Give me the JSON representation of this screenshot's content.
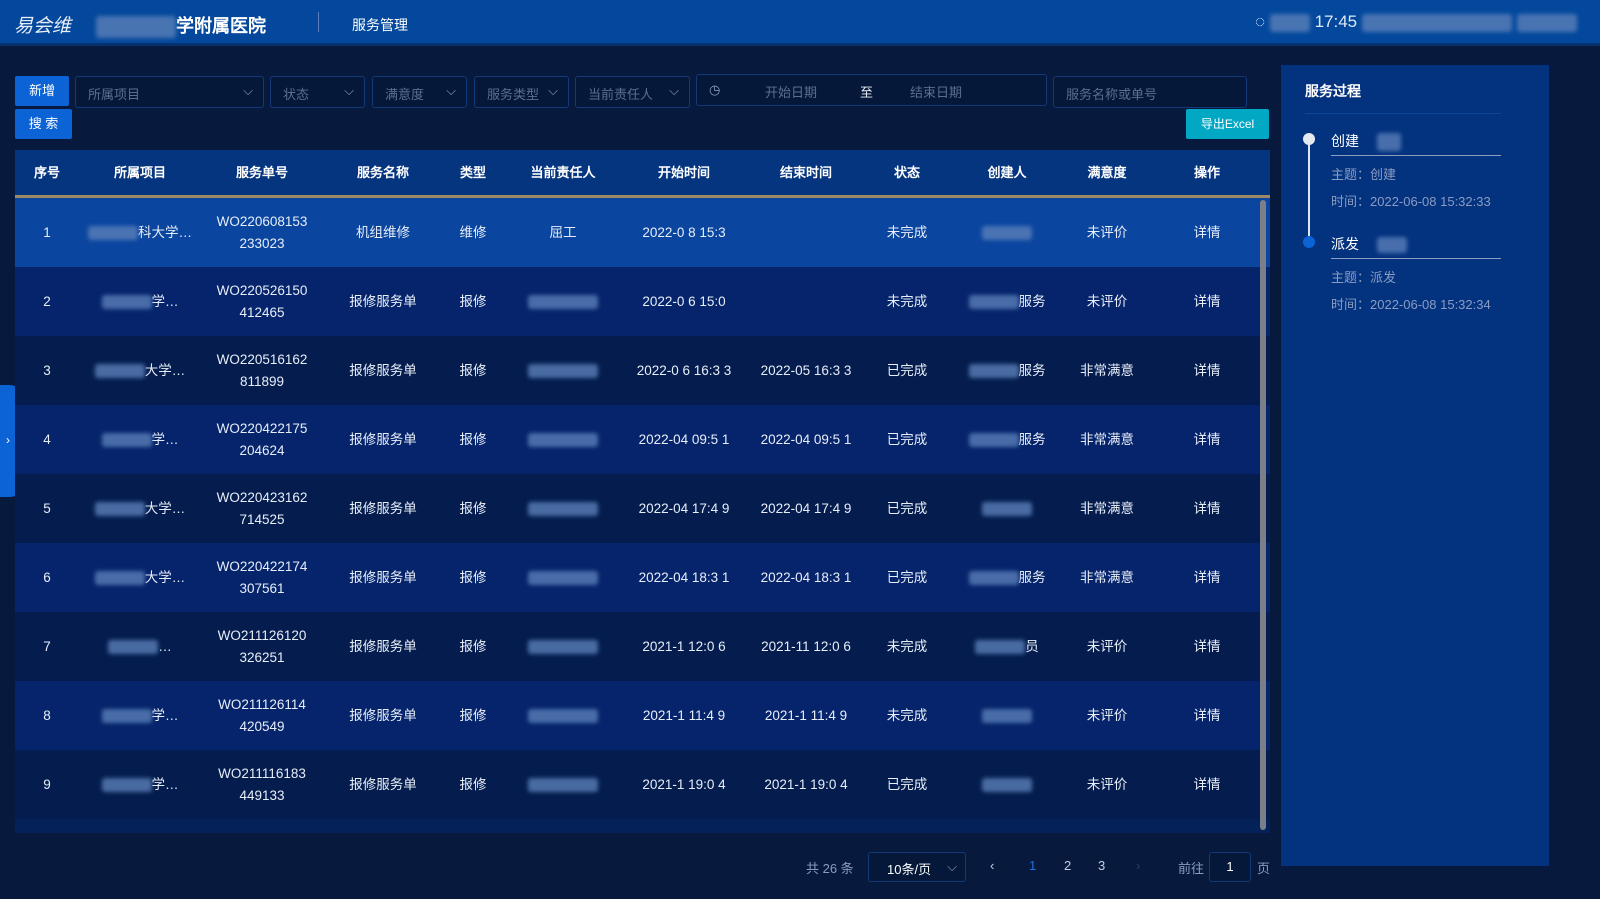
{
  "header": {
    "logo": "易会维",
    "hospital": "学附属医院",
    "module": "服务管理",
    "time": "17:45"
  },
  "toolbar": {
    "add": "新增",
    "search": "搜 索",
    "export": "导出Excel",
    "filters": [
      "所属项目",
      "状态",
      "满意度",
      "服务类型",
      "当前责任人"
    ],
    "start_date": "开始日期",
    "to": "至",
    "end_date": "结束日期",
    "keyword_placeholder": "服务名称或单号"
  },
  "table": {
    "headers": [
      "序号",
      "所属项目",
      "服务单号",
      "服务名称",
      "类型",
      "当前责任人",
      "开始时间",
      "结束时间",
      "状态",
      "创建人",
      "满意度",
      "操作"
    ],
    "rows": [
      {
        "no": "1",
        "project": "科大学…",
        "id": "WO220608153233023",
        "name": "机组维修",
        "type": "维修",
        "owner": "屈工",
        "start": "2022-0 8 15:3",
        "end": "",
        "status": "未完成",
        "creator": "",
        "sat": "未评价",
        "op": "详情"
      },
      {
        "no": "2",
        "project": "学…",
        "id": "WO220526150412465",
        "name": "报修服务单",
        "type": "报修",
        "owner": "",
        "start": "2022-0 6 15:0",
        "end": "",
        "status": "未完成",
        "creator": "服务",
        "sat": "未评价",
        "op": "详情"
      },
      {
        "no": "3",
        "project": "大学…",
        "id": "WO220516162811899",
        "name": "报修服务单",
        "type": "报修",
        "owner": "",
        "start": "2022-0 6 16:3 3",
        "end": "2022-05 16:3 3",
        "status": "已完成",
        "creator": "服务",
        "sat": "非常满意",
        "op": "详情"
      },
      {
        "no": "4",
        "project": "学…",
        "id": "WO220422175204624",
        "name": "报修服务单",
        "type": "报修",
        "owner": "",
        "start": "2022-04 09:5 1",
        "end": "2022-04 09:5 1",
        "status": "已完成",
        "creator": "服务",
        "sat": "非常满意",
        "op": "详情"
      },
      {
        "no": "5",
        "project": "大学…",
        "id": "WO220423162714525",
        "name": "报修服务单",
        "type": "报修",
        "owner": "",
        "start": "2022-04 17:4 9",
        "end": "2022-04 17:4 9",
        "status": "已完成",
        "creator": "",
        "sat": "非常满意",
        "op": "详情"
      },
      {
        "no": "6",
        "project": "大学…",
        "id": "WO220422174307561",
        "name": "报修服务单",
        "type": "报修",
        "owner": "",
        "start": "2022-04 18:3 1",
        "end": "2022-04 18:3 1",
        "status": "已完成",
        "creator": "服务",
        "sat": "非常满意",
        "op": "详情"
      },
      {
        "no": "7",
        "project": "…",
        "id": "WO211126120326251",
        "name": "报修服务单",
        "type": "报修",
        "owner": "",
        "start": "2021-1 12:0 6",
        "end": "2021-11 12:0 6",
        "status": "未完成",
        "creator": "员",
        "sat": "未评价",
        "op": "详情"
      },
      {
        "no": "8",
        "project": "学…",
        "id": "WO211126114420549",
        "name": "报修服务单",
        "type": "报修",
        "owner": "",
        "start": "2021-1 11:4 9",
        "end": "2021-1 11:4 9",
        "status": "未完成",
        "creator": "",
        "sat": "未评价",
        "op": "详情"
      },
      {
        "no": "9",
        "project": "学…",
        "id": "WO211116183449133",
        "name": "报修服务单",
        "type": "报修",
        "owner": "",
        "start": "2021-1 19:0 4",
        "end": "2021-1 19:0 4",
        "status": "已完成",
        "creator": "",
        "sat": "未评价",
        "op": "详情"
      }
    ]
  },
  "panel": {
    "title": "服务过程",
    "events": [
      {
        "title": "创建",
        "subject": "主题：创建",
        "time": "时间：2022-06-08 15:32:33"
      },
      {
        "title": "派发",
        "subject": "主题：派发",
        "time": "时间：2022-06-08 15:32:34"
      }
    ]
  },
  "pagination": {
    "total": "共 26 条",
    "page_size": "10条/页",
    "pages": [
      "1",
      "2",
      "3"
    ],
    "current": "1",
    "goto_label": "前往",
    "goto_value": "1",
    "page_suffix": "页"
  },
  "colors": {
    "header": "#03489c",
    "accent": "#0b63d6",
    "export": "#00a8c4"
  }
}
